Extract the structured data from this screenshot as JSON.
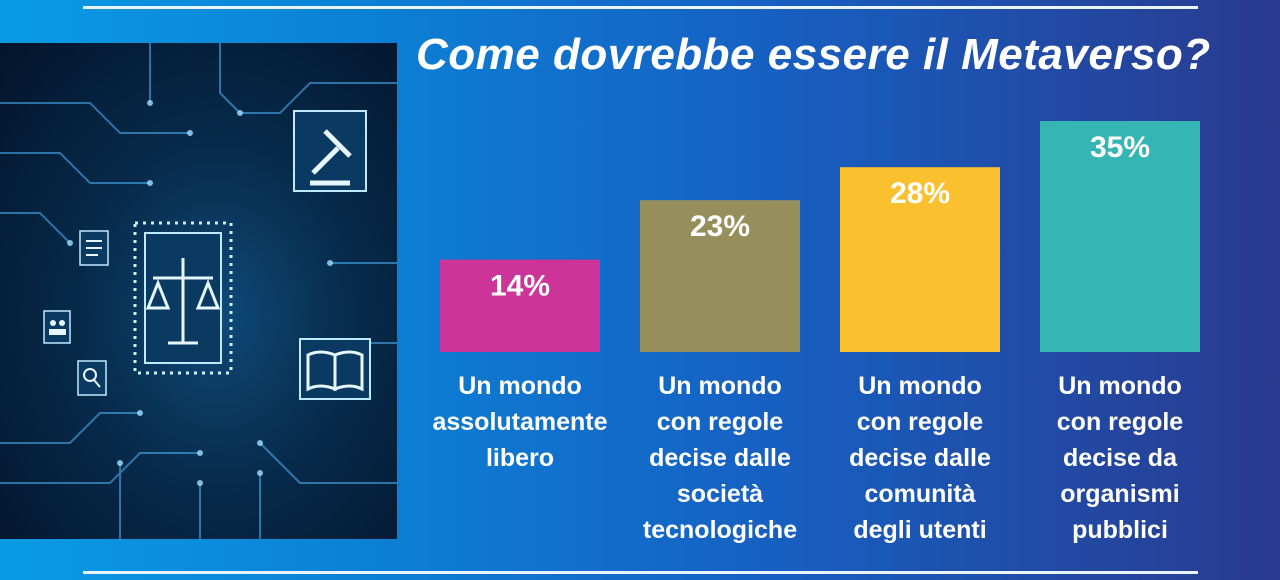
{
  "chart_data": {
    "type": "bar",
    "title": "Come dovrebbe essere il Metaverso?",
    "categories": [
      "Un mondo\nassolutamente\nlibero",
      "Un mondo\ncon regole\ndecise dalle\nsocietà\ntecnologiche",
      "Un mondo\ncon regole\ndecise dalle\ncomunità\ndegli utenti",
      "Un mondo\ncon regole\ndecise da\norganismi\npubblici"
    ],
    "values": [
      14,
      23,
      28,
      35
    ],
    "value_labels": [
      "14%",
      "23%",
      "28%",
      "35%"
    ],
    "colors": [
      "#cc3499",
      "#968f5c",
      "#fbc02d",
      "#36b5b5"
    ],
    "unit": "%",
    "xlabel": "",
    "ylabel": "",
    "ylim": [
      0,
      35
    ]
  },
  "illustration": {
    "icons": [
      "gavel-icon",
      "document-icon",
      "users-icon",
      "scale-icon",
      "search-icon",
      "book-icon"
    ]
  }
}
